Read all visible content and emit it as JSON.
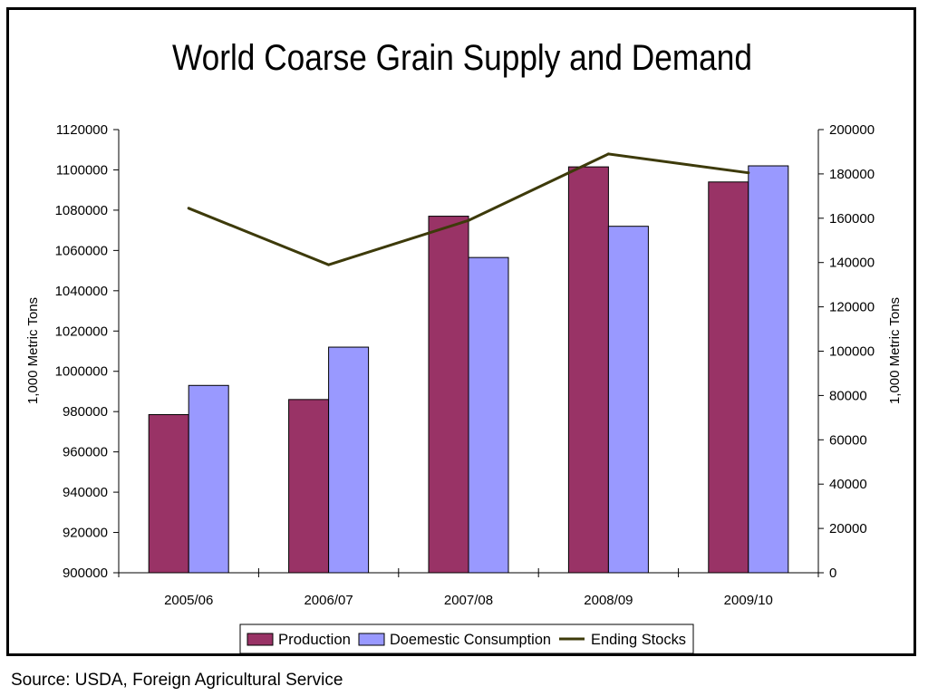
{
  "source_note": "Source: USDA, Foreign Agricultural Service",
  "chart_data": {
    "type": "bar",
    "title": "World Coarse Grain Supply and Demand",
    "categories": [
      "2005/06",
      "2006/07",
      "2007/08",
      "2008/09",
      "2009/10"
    ],
    "series": [
      {
        "name": "Production",
        "type": "bar",
        "axis": "left",
        "color": "#993366",
        "values": [
          978500,
          986000,
          1077000,
          1101500,
          1094000
        ]
      },
      {
        "name": "Doemestic Consumption",
        "type": "bar",
        "axis": "left",
        "color": "#9999ff",
        "values": [
          993000,
          1012000,
          1056500,
          1072000,
          1102000
        ]
      },
      {
        "name": "Ending Stocks",
        "type": "line",
        "axis": "right",
        "color": "#3d3a0a",
        "values": [
          164500,
          139000,
          159000,
          189000,
          180500
        ]
      }
    ],
    "ylabel": "1,000 Metric Tons",
    "y2label": "1,000 Metric Tons",
    "ylim": [
      900000,
      1120000
    ],
    "y2lim": [
      0,
      200000
    ],
    "yticks": [
      "900000",
      "920000",
      "940000",
      "960000",
      "980000",
      "1000000",
      "1020000",
      "1040000",
      "1060000",
      "1080000",
      "1100000",
      "1120000"
    ],
    "y2ticks": [
      "0",
      "20000",
      "40000",
      "60000",
      "80000",
      "100000",
      "120000",
      "140000",
      "160000",
      "180000",
      "200000"
    ],
    "legend": "bottom",
    "grid": false
  }
}
